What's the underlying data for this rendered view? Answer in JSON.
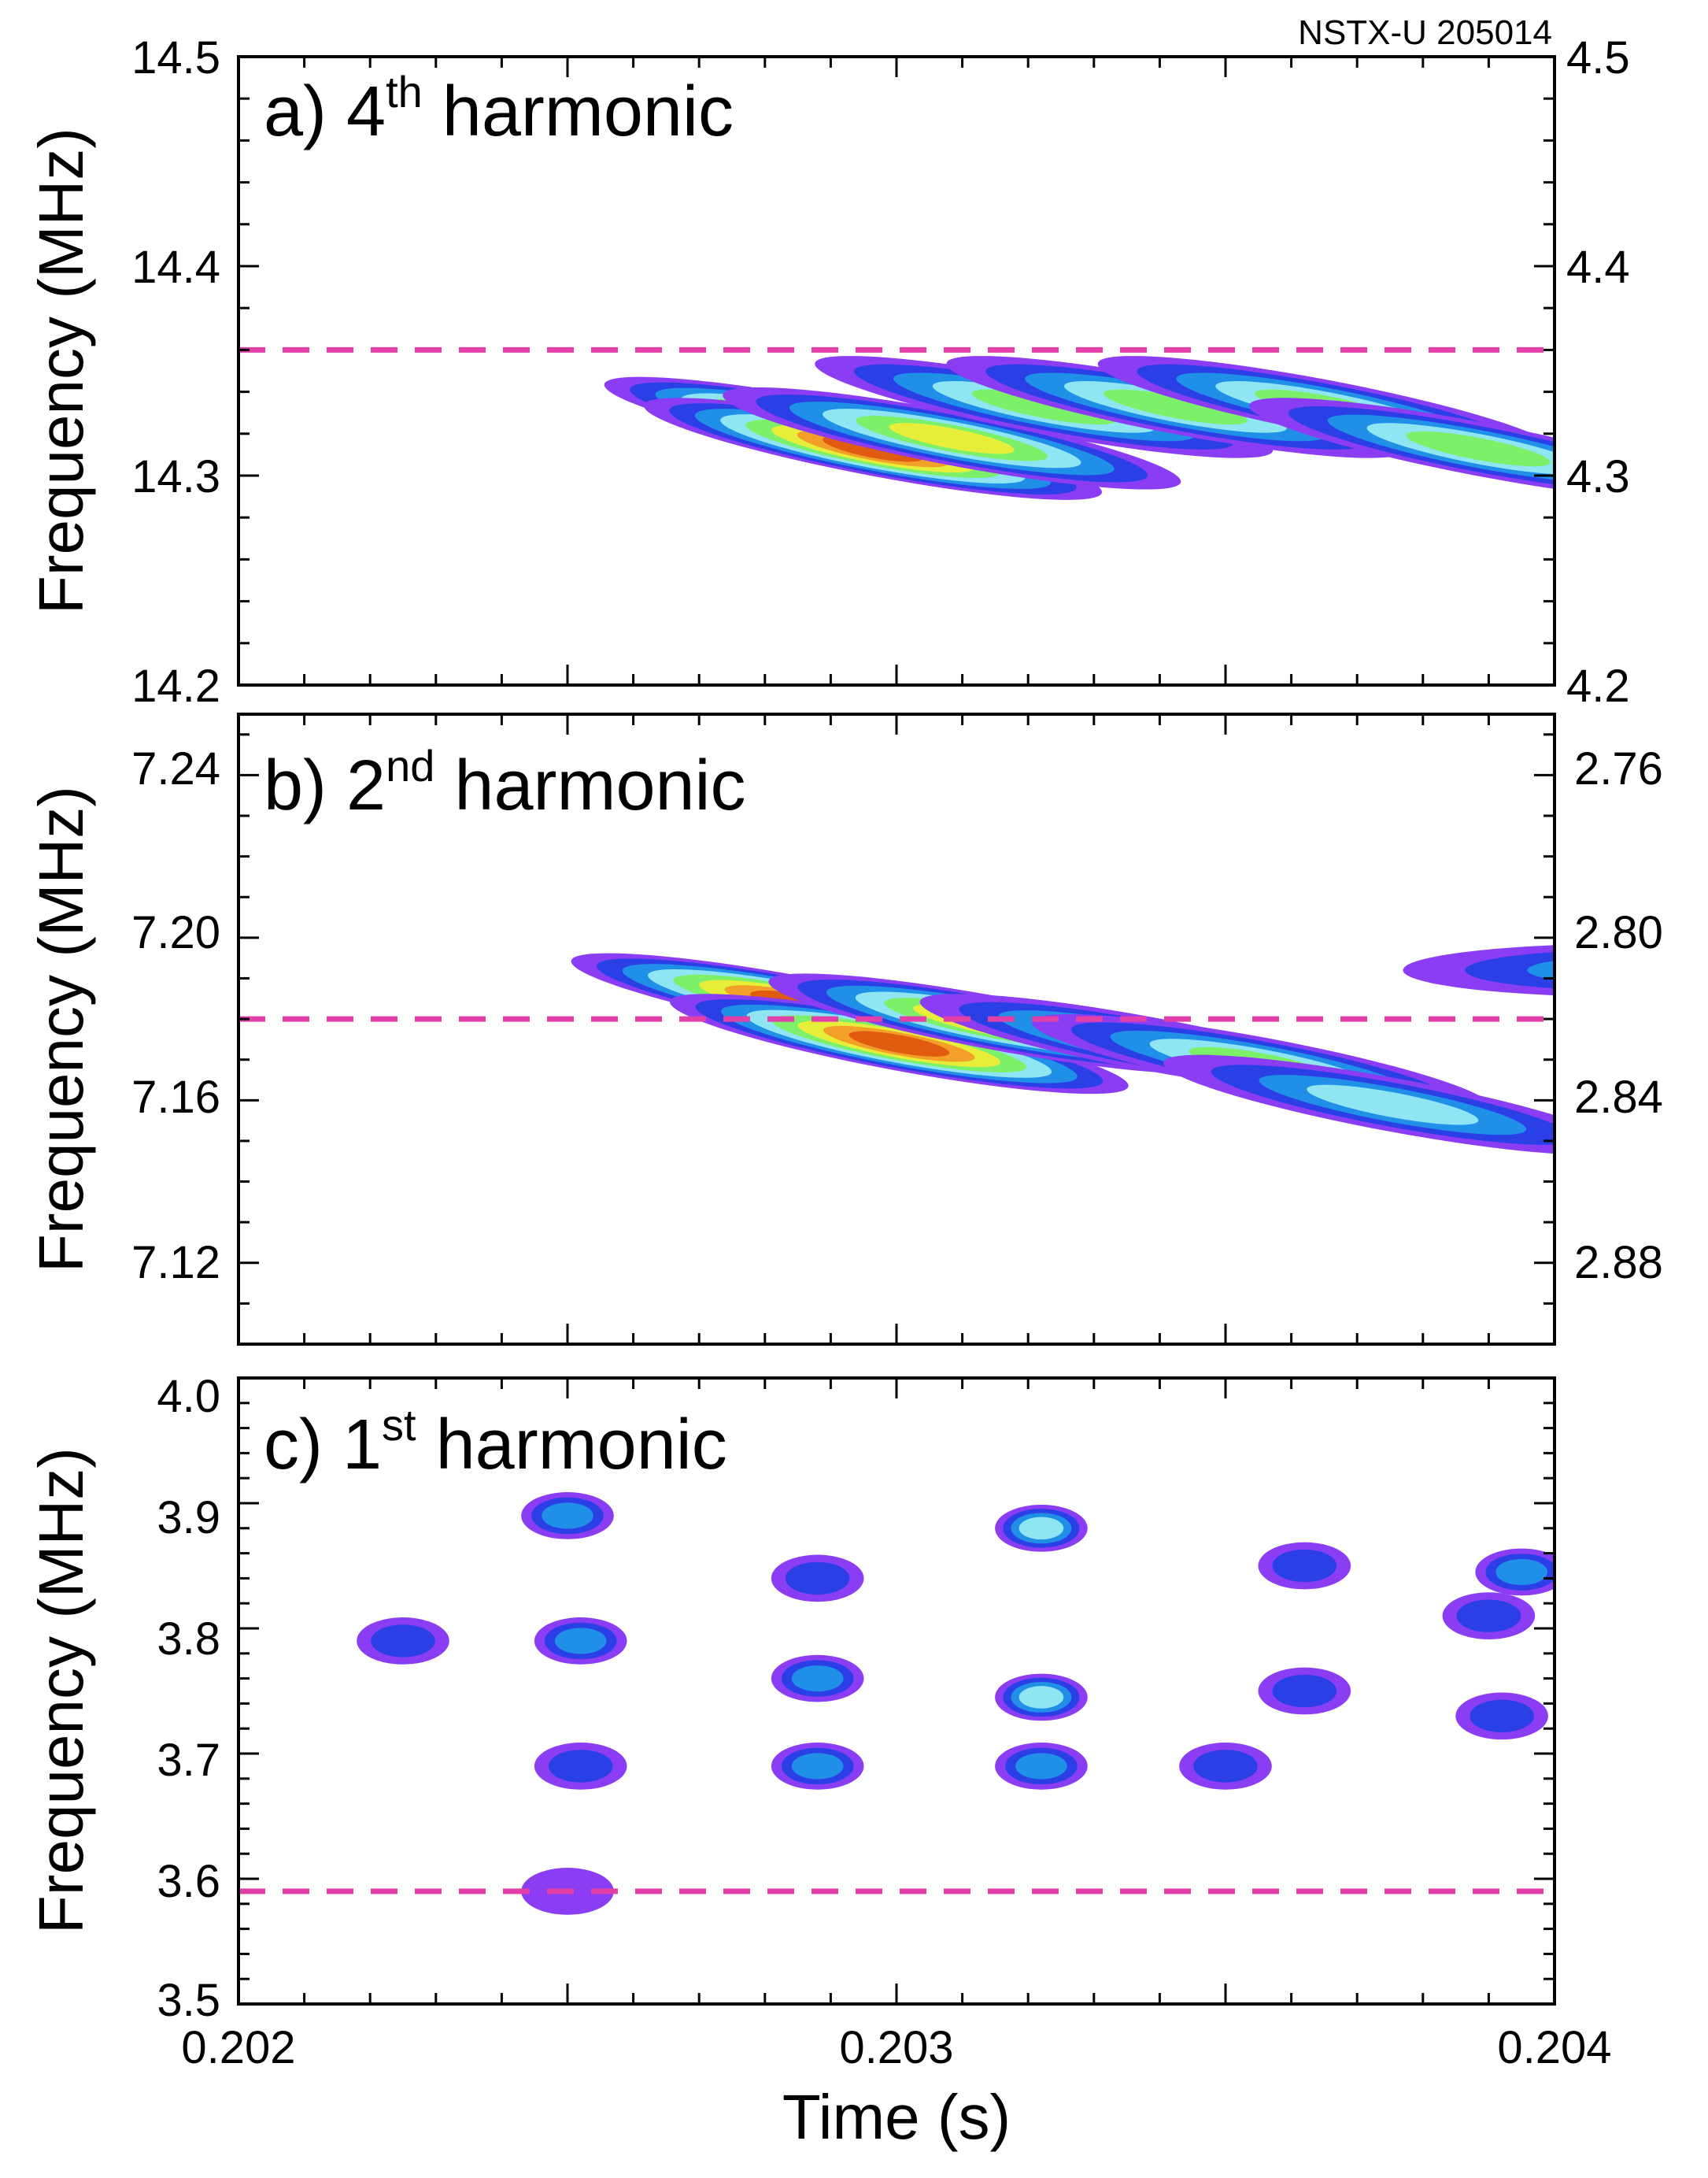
{
  "shot_label": "NSTX-U 205014",
  "colors": {
    "contour_levels": [
      "#8a3df2",
      "#2b3fe6",
      "#1f8fe8",
      "#8fe6f2",
      "#7df06a",
      "#e6ee3a",
      "#f2a028",
      "#e05a10"
    ],
    "dashed_line": "#e040a8"
  },
  "chart_data": [
    {
      "id": "a",
      "type": "heatmap",
      "label_prefix": "a) 4",
      "label_sup": "th",
      "label_suffix": " harmonic",
      "xlabel": "",
      "ylabel": "Frequency (MHz)",
      "xlim": [
        0.202,
        0.204
      ],
      "ylim": [
        14.2,
        14.5
      ],
      "yticks": [
        "14.2",
        "14.3",
        "14.4",
        "14.5"
      ],
      "right_ylim": [
        4.2,
        4.5
      ],
      "right_yticks": [
        "4.2",
        "4.3",
        "4.4",
        "4.5"
      ],
      "dashed_line_y": 14.36,
      "modes": [
        {
          "t0": 0.2027,
          "f0": 14.335,
          "slope": -60,
          "peak": 8
        },
        {
          "t0": 0.20276,
          "f0": 14.325,
          "slope": -60,
          "peak": 8
        },
        {
          "t0": 0.20288,
          "f0": 14.33,
          "slope": -60,
          "peak": 6
        },
        {
          "t0": 0.20302,
          "f0": 14.345,
          "slope": -60,
          "peak": 5
        },
        {
          "t0": 0.20322,
          "f0": 14.345,
          "slope": -60,
          "peak": 5
        },
        {
          "t0": 0.20345,
          "f0": 14.345,
          "slope": -60,
          "peak": 5
        },
        {
          "t0": 0.20368,
          "f0": 14.325,
          "slope": -60,
          "peak": 5
        }
      ]
    },
    {
      "id": "b",
      "type": "heatmap",
      "label_prefix": "b) 2",
      "label_sup": "nd",
      "label_suffix": " harmonic",
      "xlabel": "",
      "ylabel": "Frequency (MHz)",
      "xlim": [
        0.202,
        0.204
      ],
      "ylim": [
        7.1,
        7.255
      ],
      "yticks": [
        "7.12",
        "7.16",
        "7.20",
        "7.24"
      ],
      "right_yticks": [
        "2.88",
        "2.84",
        "2.80",
        "2.76"
      ],
      "dashed_line_y": 7.18,
      "modes": [
        {
          "t0": 0.20265,
          "f0": 7.19,
          "slope": -30,
          "peak": 8
        },
        {
          "t0": 0.2028,
          "f0": 7.18,
          "slope": -30,
          "peak": 8
        },
        {
          "t0": 0.20295,
          "f0": 7.185,
          "slope": -30,
          "peak": 7
        },
        {
          "t0": 0.20318,
          "f0": 7.18,
          "slope": -30,
          "peak": 5
        },
        {
          "t0": 0.20335,
          "f0": 7.175,
          "slope": -30,
          "peak": 5
        },
        {
          "t0": 0.20355,
          "f0": 7.165,
          "slope": -30,
          "peak": 4
        },
        {
          "t0": 0.20392,
          "f0": 7.192,
          "slope": 0,
          "peak": 3
        }
      ]
    },
    {
      "id": "c",
      "type": "heatmap",
      "label_prefix": "c) 1",
      "label_sup": "st",
      "label_suffix": " harmonic",
      "xlabel": "Time (s)",
      "ylabel": "Frequency (MHz)",
      "xlim": [
        0.202,
        0.204
      ],
      "ylim": [
        3.5,
        4.0
      ],
      "yticks": [
        "3.5",
        "3.6",
        "3.7",
        "3.8",
        "3.9",
        "4.0"
      ],
      "xticks": [
        "0.202",
        "0.203",
        "0.204"
      ],
      "dashed_line_y": 3.59,
      "modes": [
        {
          "t0": 0.2025,
          "f0": 3.89,
          "slope": 0,
          "peak": 3
        },
        {
          "t0": 0.20225,
          "f0": 3.79,
          "slope": 0,
          "peak": 2
        },
        {
          "t0": 0.20252,
          "f0": 3.79,
          "slope": 0,
          "peak": 3
        },
        {
          "t0": 0.20252,
          "f0": 3.69,
          "slope": 0,
          "peak": 2
        },
        {
          "t0": 0.20288,
          "f0": 3.84,
          "slope": 0,
          "peak": 2
        },
        {
          "t0": 0.20288,
          "f0": 3.76,
          "slope": 0,
          "peak": 3
        },
        {
          "t0": 0.20288,
          "f0": 3.69,
          "slope": 0,
          "peak": 3
        },
        {
          "t0": 0.20322,
          "f0": 3.88,
          "slope": 0,
          "peak": 4
        },
        {
          "t0": 0.20322,
          "f0": 3.745,
          "slope": 0,
          "peak": 4
        },
        {
          "t0": 0.20322,
          "f0": 3.69,
          "slope": 0,
          "peak": 3
        },
        {
          "t0": 0.20362,
          "f0": 3.85,
          "slope": 0,
          "peak": 2
        },
        {
          "t0": 0.20362,
          "f0": 3.75,
          "slope": 0,
          "peak": 2
        },
        {
          "t0": 0.20395,
          "f0": 3.845,
          "slope": 0,
          "peak": 3
        },
        {
          "t0": 0.2039,
          "f0": 3.81,
          "slope": 0,
          "peak": 2
        },
        {
          "t0": 0.20392,
          "f0": 3.73,
          "slope": 0,
          "peak": 2
        },
        {
          "t0": 0.2025,
          "f0": 3.59,
          "slope": 0,
          "peak": 1
        },
        {
          "t0": 0.2035,
          "f0": 3.69,
          "slope": 0,
          "peak": 2
        }
      ]
    }
  ]
}
